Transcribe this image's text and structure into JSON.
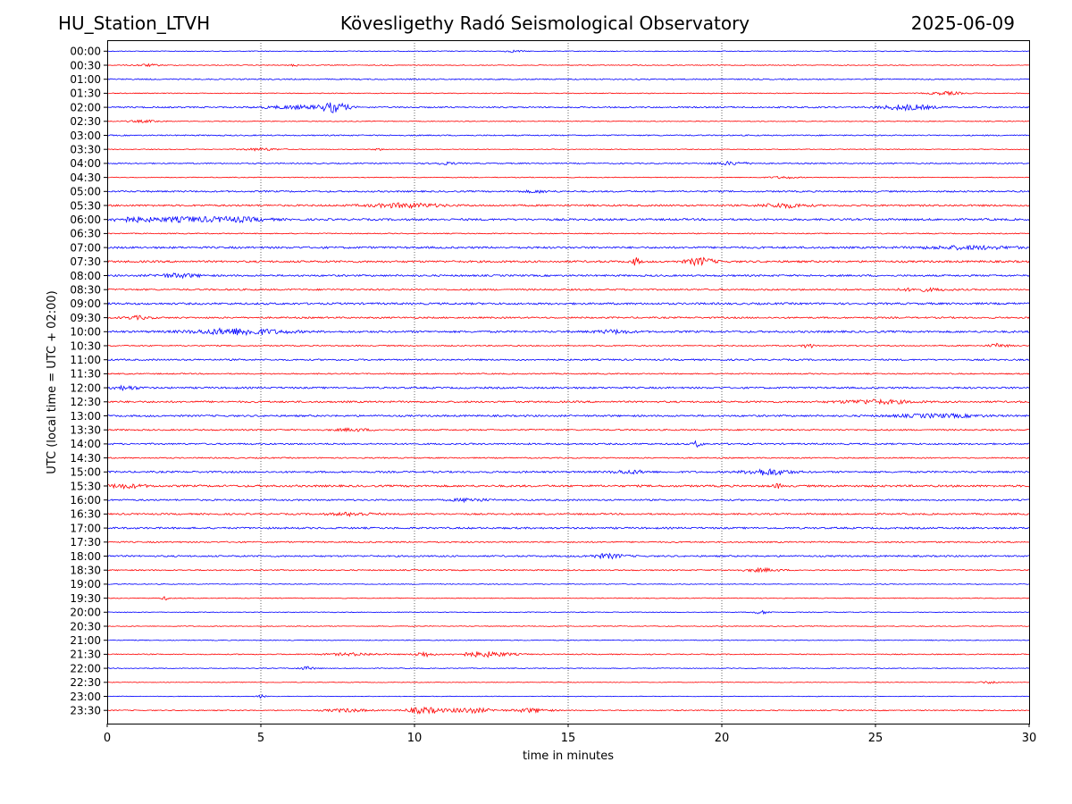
{
  "header": {
    "station": "HU_Station_LTVH",
    "observatory": "Kövesligethy Radó Seismological Observatory",
    "date": "2025-06-09"
  },
  "chart_data": {
    "type": "line",
    "title": "Kövesligethy Radó Seismological Observatory",
    "xlabel": "time in minutes",
    "ylabel": "UTC (local time = UTC + 02:00)",
    "xlim": [
      0,
      30
    ],
    "xticks": [
      0,
      5,
      10,
      15,
      20,
      25,
      30
    ],
    "vertical_gridlines_at": [
      5,
      10,
      15,
      20,
      25
    ],
    "grid": "vertical dotted",
    "colors": {
      "even_rows": "#0000ff",
      "odd_rows": "#ff0000",
      "gridline": "#000000"
    },
    "rows": [
      {
        "label": "00:00",
        "noise": 0.4,
        "events": [
          [
            13.2,
            0.2,
            1.0
          ]
        ]
      },
      {
        "label": "00:30",
        "noise": 0.4,
        "events": [
          [
            1.3,
            0.3,
            1.0
          ],
          [
            6.1,
            0.1,
            1.0
          ]
        ]
      },
      {
        "label": "01:00",
        "noise": 0.6,
        "events": []
      },
      {
        "label": "01:30",
        "noise": 0.4,
        "events": [
          [
            27.3,
            0.4,
            1.5
          ]
        ]
      },
      {
        "label": "02:00",
        "noise": 0.7,
        "events": [
          [
            7.4,
            0.3,
            4.5
          ],
          [
            6.2,
            0.8,
            1.5
          ],
          [
            26.0,
            0.6,
            2.5
          ]
        ]
      },
      {
        "label": "02:30",
        "noise": 0.4,
        "events": [
          [
            1.2,
            0.4,
            1.0
          ]
        ]
      },
      {
        "label": "03:00",
        "noise": 0.6,
        "events": []
      },
      {
        "label": "03:30",
        "noise": 0.4,
        "events": [
          [
            5.0,
            0.4,
            1.2
          ],
          [
            8.8,
            0.1,
            1.0
          ]
        ]
      },
      {
        "label": "04:00",
        "noise": 0.6,
        "events": [
          [
            11.0,
            0.3,
            1.0
          ],
          [
            20.3,
            0.4,
            1.5
          ]
        ]
      },
      {
        "label": "04:30",
        "noise": 0.4,
        "events": [
          [
            22.0,
            0.3,
            1.0
          ]
        ]
      },
      {
        "label": "05:00",
        "noise": 0.8,
        "events": [
          [
            14.0,
            0.3,
            1.0
          ]
        ]
      },
      {
        "label": "05:30",
        "noise": 0.9,
        "events": [
          [
            9.7,
            0.8,
            2.0
          ],
          [
            22.0,
            0.5,
            2.0
          ]
        ]
      },
      {
        "label": "06:00",
        "noise": 1.0,
        "events": [
          [
            0.8,
            0.5,
            2.0
          ],
          [
            2.5,
            0.7,
            2.0
          ],
          [
            4.2,
            0.7,
            2.0
          ]
        ]
      },
      {
        "label": "06:30",
        "noise": 0.5,
        "events": []
      },
      {
        "label": "07:00",
        "noise": 1.0,
        "events": [
          [
            28.0,
            1.0,
            1.5
          ]
        ]
      },
      {
        "label": "07:30",
        "noise": 1.0,
        "events": [
          [
            17.2,
            0.1,
            3.5
          ],
          [
            19.3,
            0.3,
            3.5
          ]
        ]
      },
      {
        "label": "08:00",
        "noise": 0.9,
        "events": [
          [
            2.3,
            0.5,
            1.8
          ]
        ]
      },
      {
        "label": "08:30",
        "noise": 0.8,
        "events": [
          [
            26.5,
            0.6,
            1.2
          ]
        ]
      },
      {
        "label": "09:00",
        "noise": 1.0,
        "events": []
      },
      {
        "label": "09:30",
        "noise": 0.8,
        "events": [
          [
            1.0,
            0.3,
            1.5
          ]
        ]
      },
      {
        "label": "10:00",
        "noise": 1.0,
        "events": [
          [
            4.3,
            1.0,
            3.0
          ],
          [
            16.5,
            0.4,
            1.5
          ]
        ]
      },
      {
        "label": "10:30",
        "noise": 0.6,
        "events": [
          [
            22.8,
            0.1,
            3.0
          ],
          [
            29.0,
            0.2,
            2.0
          ]
        ]
      },
      {
        "label": "11:00",
        "noise": 0.8,
        "events": []
      },
      {
        "label": "11:30",
        "noise": 0.6,
        "events": []
      },
      {
        "label": "12:00",
        "noise": 0.9,
        "events": [
          [
            0.6,
            0.3,
            1.8
          ]
        ]
      },
      {
        "label": "12:30",
        "noise": 0.9,
        "events": [
          [
            25.0,
            0.8,
            1.8
          ]
        ]
      },
      {
        "label": "13:00",
        "noise": 0.9,
        "events": [
          [
            27.0,
            1.0,
            1.5
          ]
        ]
      },
      {
        "label": "13:30",
        "noise": 0.7,
        "events": [
          [
            8.0,
            0.4,
            1.2
          ]
        ]
      },
      {
        "label": "14:00",
        "noise": 0.8,
        "events": [
          [
            19.2,
            0.1,
            3.0
          ]
        ]
      },
      {
        "label": "14:30",
        "noise": 0.6,
        "events": []
      },
      {
        "label": "15:00",
        "noise": 0.9,
        "events": [
          [
            17.0,
            0.4,
            1.5
          ],
          [
            21.5,
            0.5,
            3.0
          ]
        ]
      },
      {
        "label": "15:30",
        "noise": 1.0,
        "events": [
          [
            0.6,
            0.4,
            1.8
          ],
          [
            21.8,
            0.1,
            2.0
          ]
        ]
      },
      {
        "label": "16:00",
        "noise": 0.8,
        "events": [
          [
            11.8,
            0.4,
            1.5
          ]
        ]
      },
      {
        "label": "16:30",
        "noise": 0.8,
        "events": [
          [
            8.0,
            0.5,
            1.5
          ]
        ]
      },
      {
        "label": "17:00",
        "noise": 0.9,
        "events": []
      },
      {
        "label": "17:30",
        "noise": 0.7,
        "events": []
      },
      {
        "label": "18:00",
        "noise": 0.8,
        "events": [
          [
            16.3,
            0.4,
            2.0
          ]
        ]
      },
      {
        "label": "18:30",
        "noise": 0.6,
        "events": [
          [
            21.3,
            0.4,
            1.5
          ]
        ]
      },
      {
        "label": "19:00",
        "noise": 0.4,
        "events": []
      },
      {
        "label": "19:30",
        "noise": 0.4,
        "events": [
          [
            1.9,
            0.1,
            1.5
          ]
        ]
      },
      {
        "label": "20:00",
        "noise": 0.4,
        "events": [
          [
            21.3,
            0.2,
            1.5
          ]
        ]
      },
      {
        "label": "20:30",
        "noise": 0.4,
        "events": []
      },
      {
        "label": "21:00",
        "noise": 0.4,
        "events": []
      },
      {
        "label": "21:30",
        "noise": 0.5,
        "events": [
          [
            10.3,
            0.2,
            2.5
          ],
          [
            12.3,
            0.6,
            2.5
          ],
          [
            8.0,
            0.6,
            1.2
          ]
        ]
      },
      {
        "label": "22:00",
        "noise": 0.4,
        "events": [
          [
            6.5,
            0.2,
            1.5
          ]
        ]
      },
      {
        "label": "22:30",
        "noise": 0.3,
        "events": [
          [
            28.7,
            0.3,
            1.0
          ]
        ]
      },
      {
        "label": "23:00",
        "noise": 0.3,
        "events": [
          [
            5.0,
            0.1,
            1.5
          ]
        ]
      },
      {
        "label": "23:30",
        "noise": 0.5,
        "events": [
          [
            10.3,
            0.4,
            3.0
          ],
          [
            11.8,
            0.5,
            2.5
          ],
          [
            13.8,
            0.4,
            2.0
          ],
          [
            7.8,
            0.5,
            1.5
          ]
        ]
      }
    ]
  }
}
